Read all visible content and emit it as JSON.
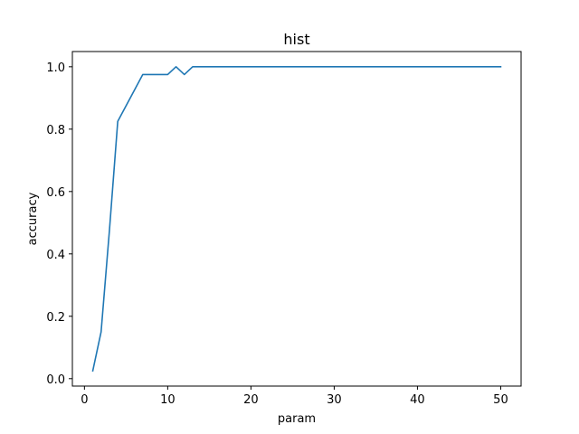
{
  "chart_data": {
    "type": "line",
    "title": "hist",
    "xlabel": "param",
    "ylabel": "accuracy",
    "xlim": [
      -1.45,
      52.45
    ],
    "ylim": [
      -0.0238,
      1.0488
    ],
    "xticks": [
      0,
      10,
      20,
      30,
      40,
      50
    ],
    "xtick_labels": [
      "0",
      "10",
      "20",
      "30",
      "40",
      "50"
    ],
    "yticks": [
      0.0,
      0.2,
      0.4,
      0.6,
      0.8,
      1.0
    ],
    "ytick_labels": [
      "0.0",
      "0.2",
      "0.4",
      "0.6",
      "0.8",
      "1.0"
    ],
    "grid": false,
    "series": [
      {
        "color": "#1f77b4",
        "x": [
          1,
          2,
          3,
          4,
          5,
          6,
          7,
          8,
          9,
          10,
          11,
          12,
          13,
          14,
          15,
          16,
          17,
          18,
          19,
          20,
          21,
          22,
          23,
          24,
          25,
          26,
          27,
          28,
          29,
          30,
          31,
          32,
          33,
          34,
          35,
          36,
          37,
          38,
          39,
          40,
          41,
          42,
          43,
          44,
          45,
          46,
          47,
          48,
          49,
          50
        ],
        "y": [
          0.025,
          0.15,
          0.475,
          0.825,
          0.875,
          0.925,
          0.975,
          0.975,
          0.975,
          0.975,
          1.0,
          0.975,
          1.0,
          1.0,
          1.0,
          1.0,
          1.0,
          1.0,
          1.0,
          1.0,
          1.0,
          1.0,
          1.0,
          1.0,
          1.0,
          1.0,
          1.0,
          1.0,
          1.0,
          1.0,
          1.0,
          1.0,
          1.0,
          1.0,
          1.0,
          1.0,
          1.0,
          1.0,
          1.0,
          1.0,
          1.0,
          1.0,
          1.0,
          1.0,
          1.0,
          1.0,
          1.0,
          1.0,
          1.0,
          1.0
        ]
      }
    ]
  }
}
